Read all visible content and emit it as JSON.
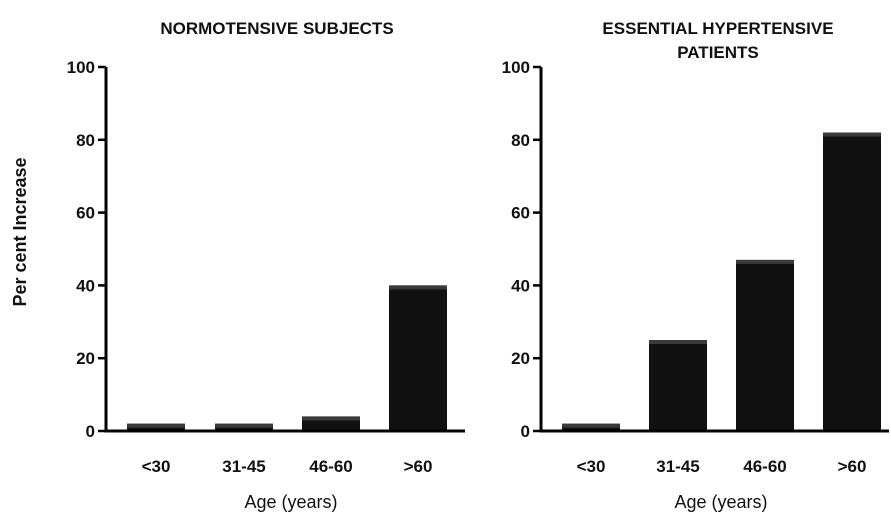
{
  "chart_data": [
    {
      "type": "bar",
      "title": "NORMOTENSIVE SUBJECTS",
      "xlabel": "Age (years)",
      "ylabel": "Per cent Increase",
      "categories": [
        "<30",
        "31-45",
        "46-60",
        ">60"
      ],
      "values": [
        2,
        2,
        4,
        40
      ],
      "ylim": [
        0,
        100
      ],
      "yticks": [
        "0",
        "20",
        "40",
        "60",
        "80",
        "100"
      ],
      "grid": false,
      "bar_color": "#111111"
    },
    {
      "type": "bar",
      "title_lines": [
        "ESSENTIAL HYPERTENSIVE",
        "PATIENTS"
      ],
      "xlabel": "Age (years)",
      "categories": [
        "<30",
        "31-45",
        "46-60",
        ">60"
      ],
      "values": [
        2,
        25,
        47,
        82
      ],
      "ylim": [
        0,
        100
      ],
      "yticks": [
        "0",
        "20",
        "40",
        "60",
        "80",
        "100"
      ],
      "grid": false,
      "bar_color": "#111111"
    }
  ]
}
